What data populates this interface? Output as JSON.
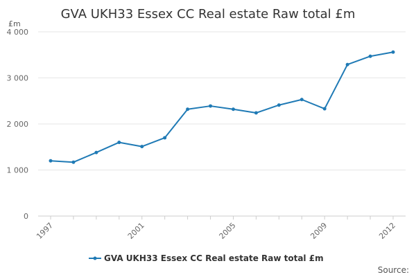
{
  "chart_data": {
    "type": "line",
    "title": "GVA UKH33 Essex CC Real estate Raw total £m",
    "unit_label": "£m",
    "xlabel": "",
    "ylabel": "",
    "x": [
      1997,
      1998,
      1999,
      2000,
      2001,
      2002,
      2003,
      2004,
      2005,
      2006,
      2007,
      2008,
      2009,
      2010,
      2011,
      2012
    ],
    "x_tick_labels": [
      "1997",
      "2001",
      "2005",
      "2009",
      "2012"
    ],
    "x_tick_values": [
      1997,
      2001,
      2005,
      2009,
      2012
    ],
    "y_tick_labels": [
      "0",
      "1 000",
      "2 000",
      "3 000",
      "4 000"
    ],
    "y_tick_values": [
      0,
      1000,
      2000,
      3000,
      4000
    ],
    "ylim": [
      0,
      4000
    ],
    "grid": true,
    "legend_position": "bottom",
    "series": [
      {
        "name": "GVA UKH33 Essex CC Real estate Raw total £m",
        "color": "#1f7ab5",
        "values": [
          1200,
          1170,
          1380,
          1600,
          1510,
          1700,
          2320,
          2390,
          2320,
          2240,
          2410,
          2530,
          2330,
          3290,
          3470,
          3560
        ]
      }
    ],
    "source_label": "Source:"
  }
}
